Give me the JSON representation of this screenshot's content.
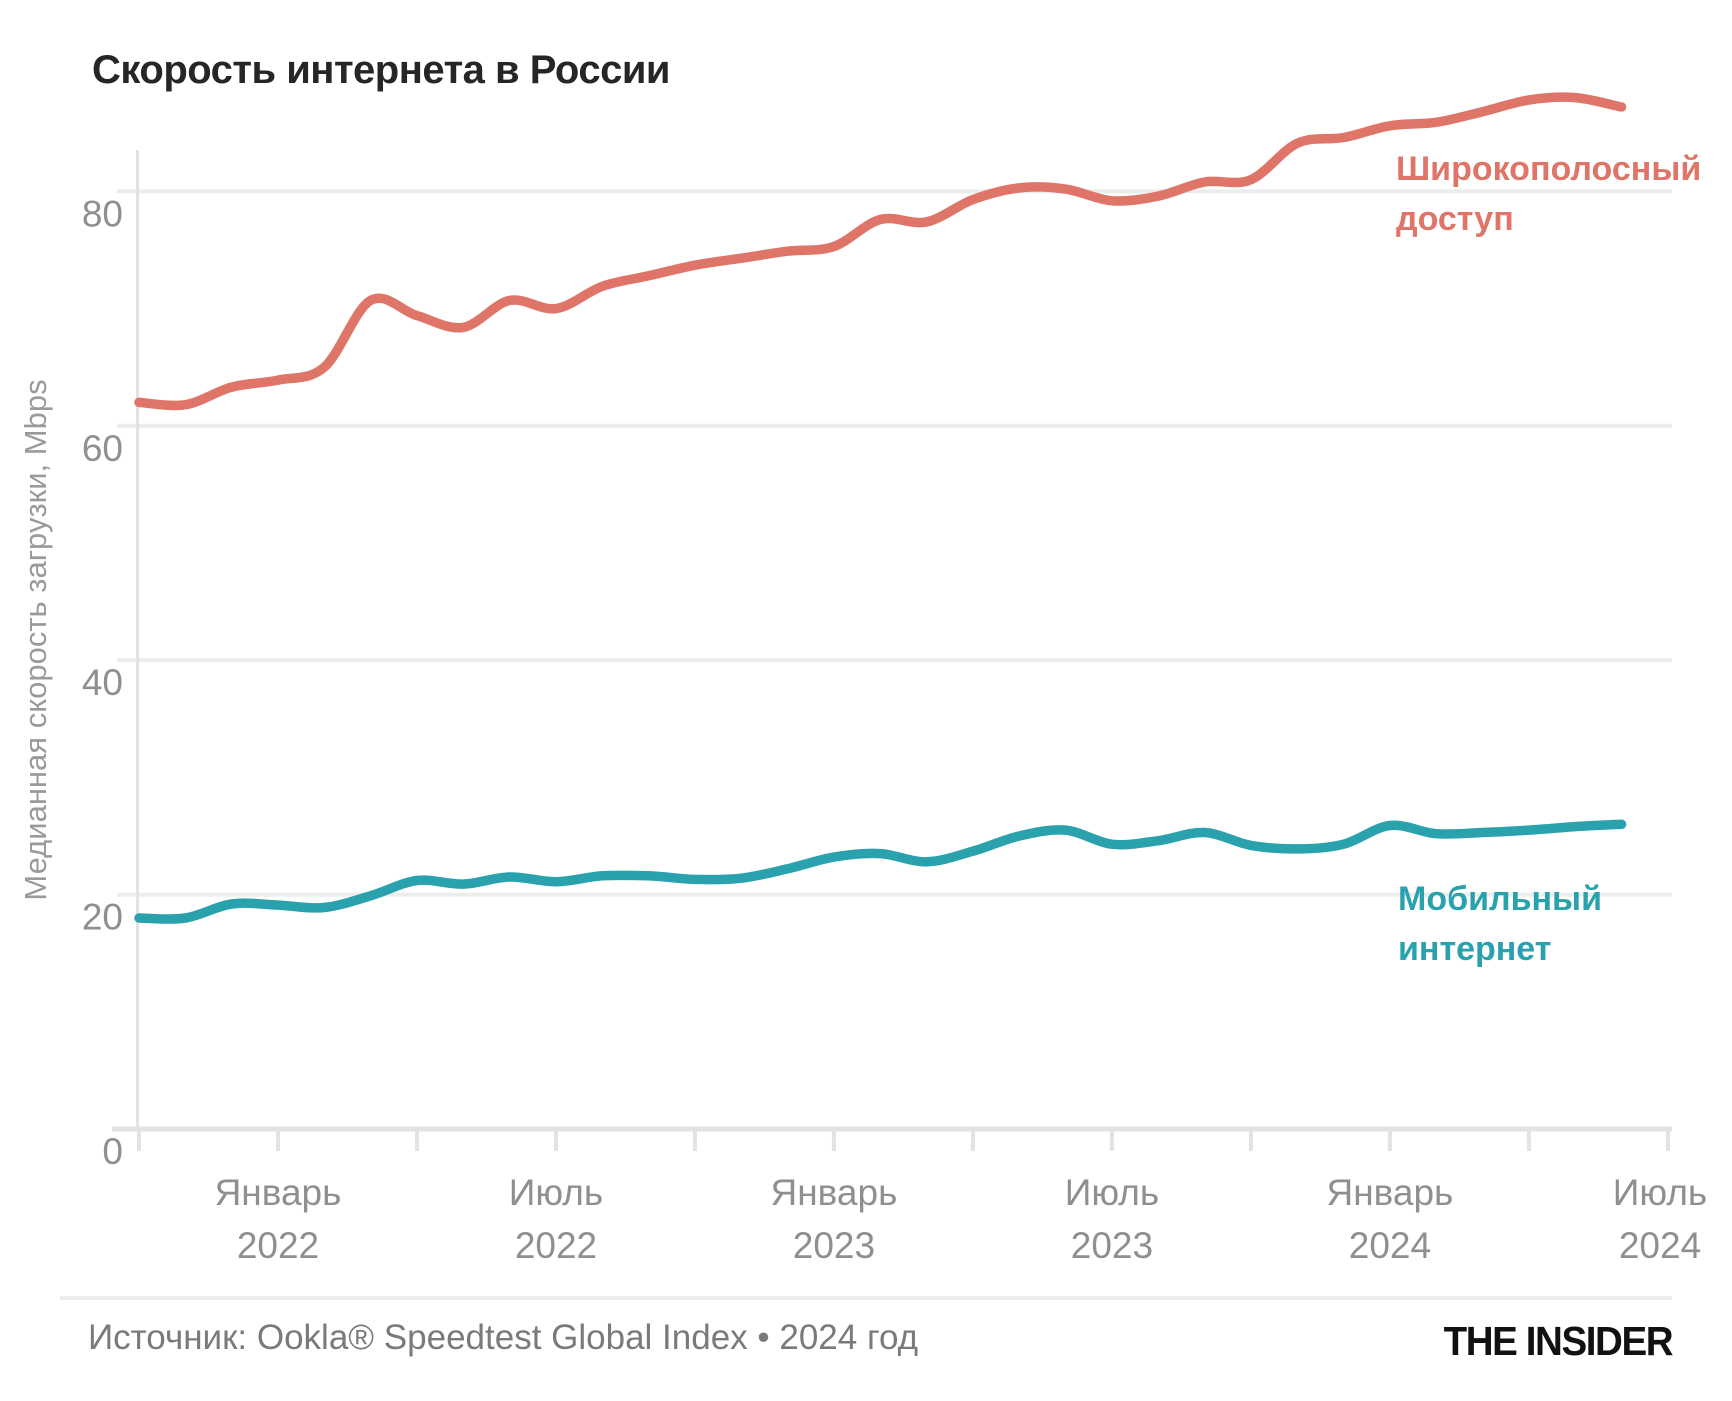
{
  "title": "Скорость интернета в России",
  "y_axis": {
    "title": "Медианная скорость загрузки, Mbps",
    "ticks": [
      0,
      20,
      40,
      60,
      80
    ]
  },
  "x_axis": {
    "labels": [
      {
        "month": "Январь",
        "year": "2022"
      },
      {
        "month": "Июль",
        "year": "2022"
      },
      {
        "month": "Январь",
        "year": "2023"
      },
      {
        "month": "Июль",
        "year": "2023"
      },
      {
        "month": "Январь",
        "year": "2024"
      },
      {
        "month": "Июль",
        "year": "2024"
      }
    ]
  },
  "annotations": {
    "broadband": [
      "Широкополосный",
      "доступ"
    ],
    "mobile": [
      "Мобильный",
      "интернет"
    ]
  },
  "footer": {
    "source": "Источник: Ookla® Speedtest Global Index • 2024 год",
    "logo": "THE INSIDER"
  },
  "colors": {
    "broadband": "#df7568",
    "mobile": "#2aa2ae",
    "grid": "#ececec",
    "axis_line": "#e3e3e3",
    "tick_text": "#8f8f8f",
    "axis_title_text": "#9a9a9a"
  },
  "chart_data": {
    "type": "line",
    "title": "Скорость интернета в России",
    "ylabel": "Медианная скорость загрузки, Mbps",
    "ylim": [
      0,
      90
    ],
    "grid": "horizontal",
    "x_interval": "monthly",
    "x": [
      "2021-10",
      "2021-11",
      "2021-12",
      "2022-01",
      "2022-02",
      "2022-03",
      "2022-04",
      "2022-05",
      "2022-06",
      "2022-07",
      "2022-08",
      "2022-09",
      "2022-10",
      "2022-11",
      "2022-12",
      "2023-01",
      "2023-02",
      "2023-03",
      "2023-04",
      "2023-05",
      "2023-06",
      "2023-07",
      "2023-08",
      "2023-09",
      "2023-10",
      "2023-11",
      "2023-12",
      "2024-01",
      "2024-02",
      "2024-03",
      "2024-04",
      "2024-05",
      "2024-06"
    ],
    "x_tick_labels": [
      "Январь 2022",
      "Июль 2022",
      "Январь 2023",
      "Июль 2023",
      "Январь 2024",
      "Июль 2024"
    ],
    "series": [
      {
        "name": "Широкополосный доступ",
        "color": "#df7568",
        "values": [
          62.0,
          61.8,
          63.3,
          63.9,
          65.0,
          70.7,
          69.4,
          68.4,
          70.7,
          70.0,
          71.9,
          72.8,
          73.7,
          74.3,
          74.9,
          75.3,
          77.6,
          77.4,
          79.3,
          80.3,
          80.2,
          79.2,
          79.6,
          80.8,
          81.0,
          84.1,
          84.6,
          85.6,
          85.9,
          86.8,
          87.8,
          88.0,
          87.2
        ]
      },
      {
        "name": "Мобильный интернет",
        "color": "#2aa2ae",
        "values": [
          18.0,
          18.0,
          19.2,
          19.1,
          18.9,
          19.9,
          21.2,
          20.9,
          21.5,
          21.1,
          21.6,
          21.6,
          21.3,
          21.4,
          22.2,
          23.2,
          23.5,
          22.8,
          23.7,
          25.0,
          25.5,
          24.3,
          24.6,
          25.3,
          24.2,
          23.9,
          24.3,
          25.9,
          25.2,
          25.3,
          25.5,
          25.8,
          26.0
        ]
      }
    ]
  }
}
